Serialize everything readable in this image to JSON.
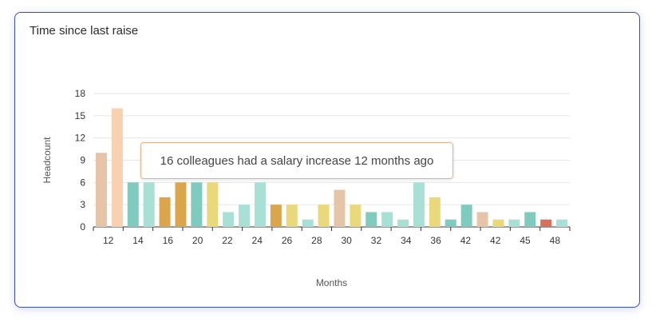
{
  "card": {
    "title": "Time since last raise"
  },
  "tooltip": {
    "text": "16 colleagues had a salary increase 12 months ago"
  },
  "colors": {
    "peach": "#e6c4a8",
    "light_orange": "#f8d1b0",
    "teal": "#7fcbbd",
    "light_teal": "#a8e0d5",
    "mustard": "#dba54b",
    "yellow": "#ead97a",
    "red": "#d9705c"
  },
  "chart_data": {
    "type": "bar",
    "xlabel": "Months",
    "ylabel": "Headcount",
    "ylim": [
      0,
      18
    ],
    "yticks": [
      0,
      3,
      6,
      9,
      12,
      15,
      18
    ],
    "xtick_labels": [
      "12",
      "14",
      "16",
      "20",
      "22",
      "24",
      "26",
      "28",
      "30",
      "32",
      "34",
      "36",
      "42",
      "42",
      "45",
      "48"
    ],
    "values": [
      10,
      16,
      6,
      6,
      4,
      6,
      6,
      6,
      2,
      3,
      6,
      3,
      3,
      1,
      3,
      5,
      3,
      2,
      2,
      1,
      6,
      4,
      1,
      3,
      2,
      1,
      1,
      2,
      1,
      1
    ],
    "bar_colors": [
      "peach",
      "light_orange",
      "teal",
      "light_teal",
      "mustard",
      "mustard",
      "teal",
      "yellow",
      "light_teal",
      "light_teal",
      "light_teal",
      "mustard",
      "yellow",
      "light_teal",
      "yellow",
      "peach",
      "yellow",
      "teal",
      "light_teal",
      "light_teal",
      "light_teal",
      "yellow",
      "teal",
      "teal",
      "peach",
      "yellow",
      "light_teal",
      "teal",
      "red",
      "light_teal"
    ],
    "grid": true
  }
}
